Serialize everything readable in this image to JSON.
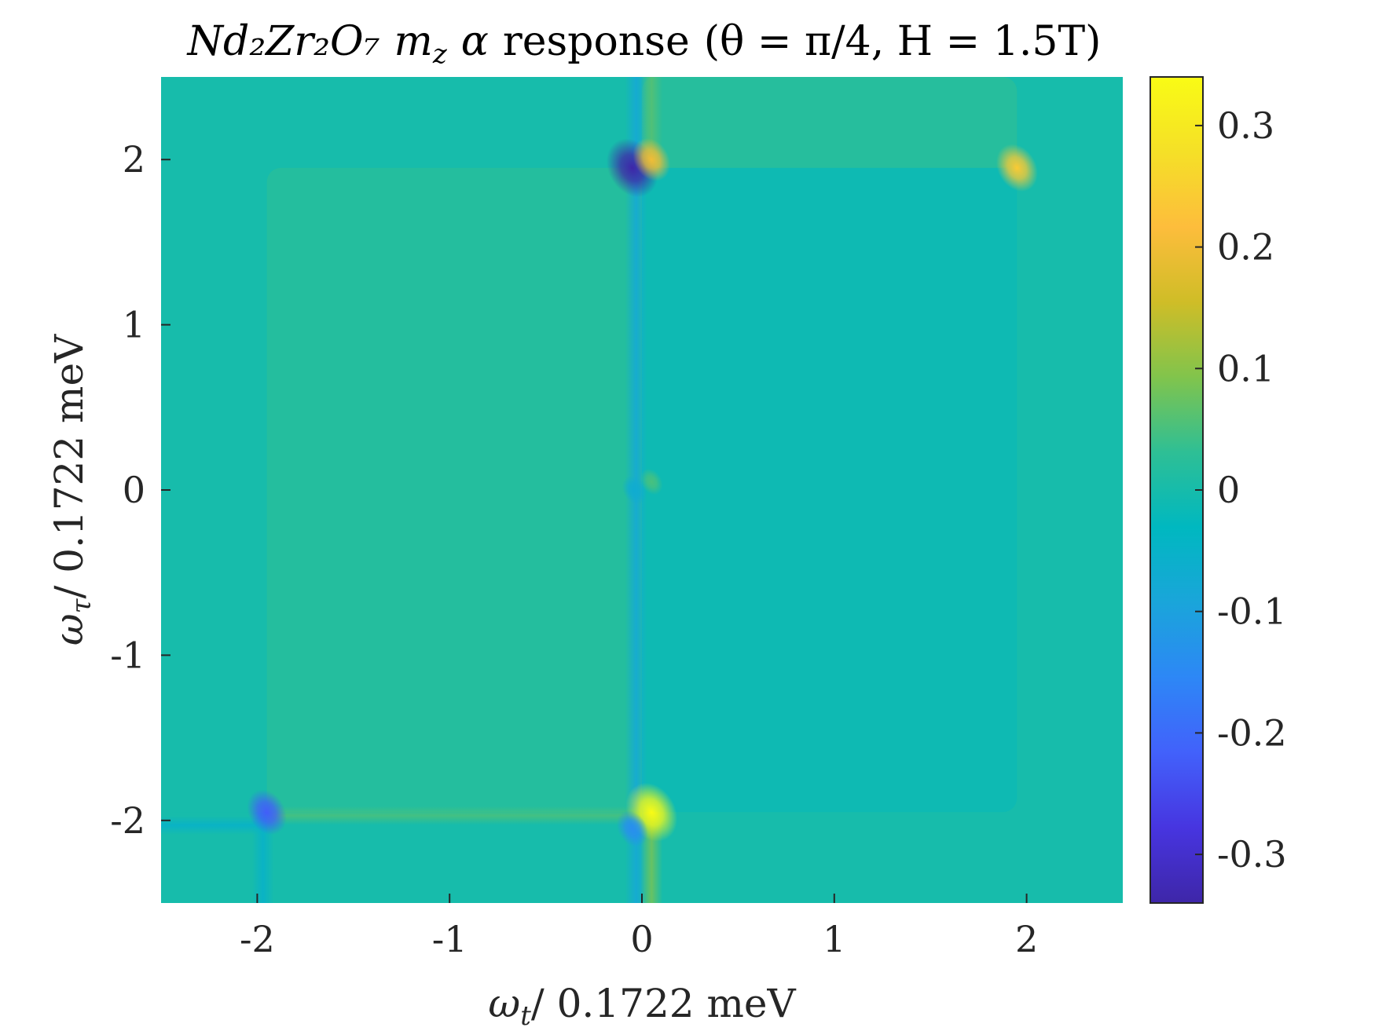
{
  "chart_data": {
    "type": "heatmap",
    "title": "Nd₂Zr₂O₇ m_z α response (θ = π/4, H = 1.5T)",
    "title_parts": {
      "material": "Nd₂Zr₂O₇",
      "component": "m",
      "component_sub": "z",
      "greek": "α",
      "word": "response",
      "params": "(θ = π/4, H = 1.5T)"
    },
    "xlabel": "ωₜ/ 0.1722 meV",
    "xlabel_parts": {
      "sym": "ω",
      "sub": "t",
      "rest": "/ 0.1722 meV"
    },
    "ylabel": "ω_τ/ 0.1722 meV",
    "ylabel_parts": {
      "sym": "ω",
      "sub": "τ",
      "rest": "/ 0.1722 meV"
    },
    "xlim": [
      -2.5,
      2.5
    ],
    "ylim": [
      -2.5,
      2.5
    ],
    "x_ticks": [
      -2,
      -1,
      0,
      1,
      2
    ],
    "x_tick_labels": [
      "-2",
      "-1",
      "0",
      "1",
      "2"
    ],
    "y_ticks": [
      -2,
      -1,
      0,
      1,
      2
    ],
    "y_tick_labels": [
      "-2",
      "-1",
      "0",
      "1",
      "2"
    ],
    "colorbar": {
      "clim": [
        -0.34,
        0.34
      ],
      "ticks": [
        0.3,
        0.2,
        0.1,
        0,
        -0.1,
        -0.2,
        -0.3
      ],
      "tick_labels": [
        "0.3",
        "0.2",
        "0.1",
        "0",
        "-0.1",
        "-0.2",
        "-0.3"
      ],
      "colormap": "parula",
      "colormap_stops": [
        "#3e26a8",
        "#4735e0",
        "#4261fb",
        "#2d87f6",
        "#1aa5da",
        "#00b8c0",
        "#2ebf95",
        "#81c44c",
        "#cfbd27",
        "#fdbd3c",
        "#f5e027",
        "#f9fb15"
      ]
    },
    "background_level": 0.0,
    "regions": [
      {
        "x": [
          -1.95,
          0.0
        ],
        "y": [
          -1.95,
          1.95
        ],
        "value": 0.018
      },
      {
        "x": [
          0.0,
          1.95
        ],
        "y": [
          -1.95,
          1.95
        ],
        "value": -0.012
      },
      {
        "x": [
          0.0,
          1.95
        ],
        "y": [
          1.95,
          2.5
        ],
        "value": 0.02
      },
      {
        "x": [
          -2.5,
          -1.95
        ],
        "y": [
          -2.5,
          -1.95
        ],
        "value": 0.0
      }
    ],
    "peaks": [
      {
        "x": -0.05,
        "y": 1.95,
        "value": -0.34
      },
      {
        "x": 0.05,
        "y": 2.0,
        "value": 0.2
      },
      {
        "x": 1.95,
        "y": 1.95,
        "value": 0.24
      },
      {
        "x": 0.05,
        "y": -1.95,
        "value": 0.34
      },
      {
        "x": -0.05,
        "y": -2.05,
        "value": -0.14
      },
      {
        "x": -1.95,
        "y": -1.95,
        "value": -0.22
      },
      {
        "x": -0.04,
        "y": 0.0,
        "value": -0.07
      },
      {
        "x": 0.05,
        "y": 0.05,
        "value": 0.05
      }
    ],
    "streaks": [
      {
        "orientation": "vertical",
        "x": -0.03,
        "y_range": [
          -2.5,
          2.5
        ],
        "value": -0.08
      },
      {
        "orientation": "vertical",
        "x": 0.05,
        "y_range": [
          1.95,
          2.5
        ],
        "value": 0.06
      },
      {
        "orientation": "vertical",
        "x": 0.05,
        "y_range": [
          -2.5,
          -1.95
        ],
        "value": 0.08
      },
      {
        "orientation": "horizontal",
        "y": -1.97,
        "x_range": [
          -1.95,
          0.0
        ],
        "value": 0.05
      },
      {
        "orientation": "horizontal",
        "y": -2.03,
        "x_range": [
          -2.5,
          -1.95
        ],
        "value": -0.05
      },
      {
        "orientation": "vertical",
        "x": -1.97,
        "y_range": [
          -2.5,
          -1.95
        ],
        "value": -0.05
      }
    ],
    "grid": false,
    "legend": "none"
  }
}
